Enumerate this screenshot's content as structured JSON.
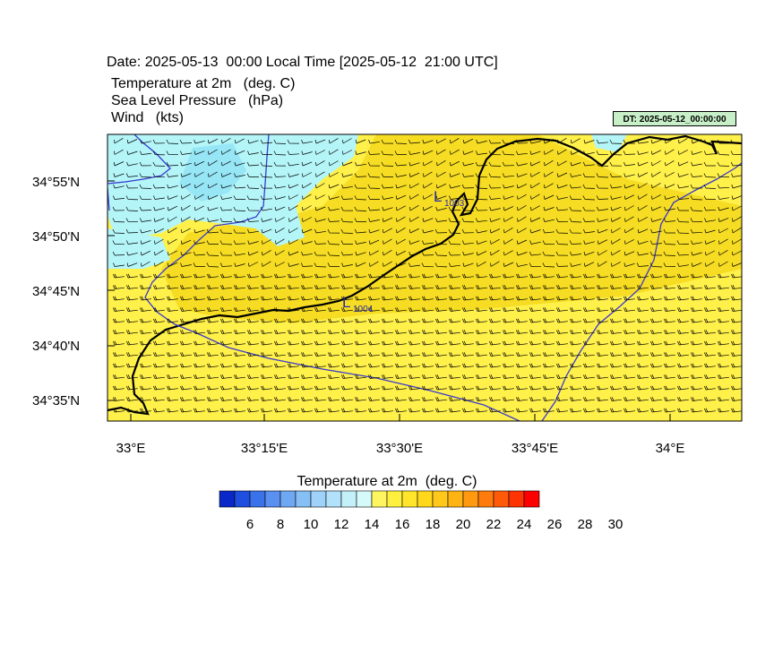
{
  "header": {
    "date_line": "Date: 2025-05-13  00:00 Local Time [2025-05-12  21:00 UTC]",
    "lines": [
      "Temperature at 2m   (deg. C)",
      "Sea Level Pressure   (hPa)",
      "Wind   (kts)"
    ],
    "dt_badge": "DT: 2025-05-12_00:00:00"
  },
  "map": {
    "lat_labels": [
      "34°55'N",
      "34°50'N",
      "34°45'N",
      "34°40'N",
      "34°35'N"
    ],
    "lon_labels": [
      "33°E",
      "33°15'E",
      "33°30'E",
      "33°45'E",
      "34°E"
    ],
    "lows": [
      {
        "symbol": "L",
        "value": "1003"
      },
      {
        "symbol": "L",
        "value": "1004"
      }
    ],
    "colors": {
      "land_warm": "#ffe84a",
      "land_warmer": "#f8d820",
      "cool_cyan": "#b4f5f8",
      "cooler_cyan": "#96e6f6",
      "coastline": "#000000",
      "border": "#3333cc"
    }
  },
  "colorbar": {
    "title": "Temperature at 2m  (deg. C)",
    "colors": [
      "#0a28c8",
      "#1f4fe0",
      "#3a72ea",
      "#5a90f0",
      "#6ea8f2",
      "#86bff6",
      "#9ed2f8",
      "#b2e2fa",
      "#c4f0fa",
      "#d6fafa",
      "#fff560",
      "#fff040",
      "#ffe62a",
      "#ffd81c",
      "#ffc81a",
      "#ffb414",
      "#ff9a10",
      "#ff7c0c",
      "#ff5a08",
      "#ff3404",
      "#ff0000"
    ],
    "labels": [
      "6",
      "8",
      "10",
      "12",
      "14",
      "16",
      "18",
      "20",
      "22",
      "24",
      "26",
      "28",
      "30"
    ]
  }
}
